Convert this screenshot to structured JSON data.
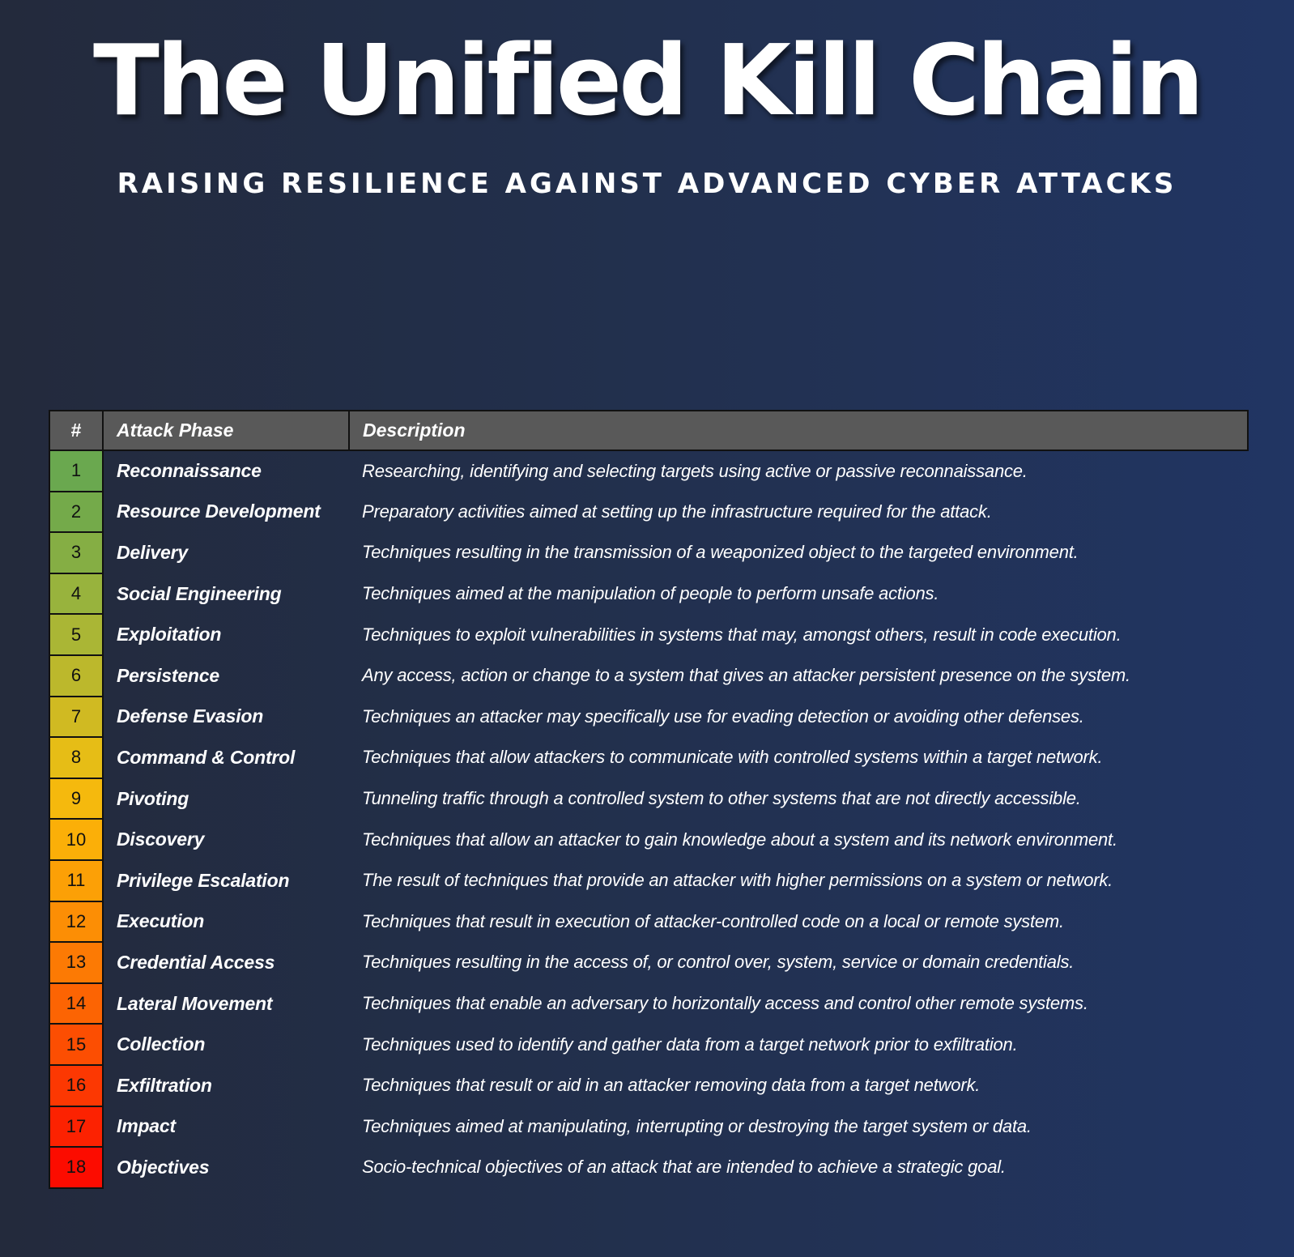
{
  "header": {
    "title": "The Unified Kill Chain",
    "subtitle": "RAISING RESILIENCE AGAINST ADVANCED CYBER ATTACKS"
  },
  "table": {
    "headers": {
      "number": "#",
      "phase": "Attack Phase",
      "description": "Description"
    },
    "rows": [
      {
        "number": "1",
        "phase": "Reconnaissance",
        "description": "Researching, identifying and selecting targets using active or passive reconnaissance.",
        "color": "#6aa84f"
      },
      {
        "number": "2",
        "phase": "Resource Development",
        "description": "Preparatory activities aimed at setting up the infrastructure required for the attack.",
        "color": "#74aa4a"
      },
      {
        "number": "3",
        "phase": "Delivery",
        "description": "Techniques resulting in the transmission of a weaponized object to the targeted environment.",
        "color": "#85ae44"
      },
      {
        "number": "4",
        "phase": "Social Engineering",
        "description": "Techniques aimed at the manipulation of people to perform unsafe actions.",
        "color": "#98b33d"
      },
      {
        "number": "5",
        "phase": "Exploitation",
        "description": "Techniques to exploit vulnerabilities in systems that may, amongst others, result in code execution.",
        "color": "#aab635"
      },
      {
        "number": "6",
        "phase": "Persistence",
        "description": "Any access, action or change to a system that gives an attacker persistent presence on the system.",
        "color": "#bcb82c"
      },
      {
        "number": "7",
        "phase": "Defense Evasion",
        "description": "Techniques an attacker may specifically use for evading detection or avoiding other defenses.",
        "color": "#d0ba22"
      },
      {
        "number": "8",
        "phase": "Command & Control",
        "description": "Techniques that allow attackers to communicate with controlled systems within a target network.",
        "color": "#e6bd16"
      },
      {
        "number": "9",
        "phase": "Pivoting",
        "description": "Tunneling traffic through a controlled system to other systems that are not directly accessible.",
        "color": "#f5b90d"
      },
      {
        "number": "10",
        "phase": "Discovery",
        "description": "Techniques that allow an attacker to gain knowledge about a system and its network environment.",
        "color": "#fbaf08"
      },
      {
        "number": "11",
        "phase": "Privilege Escalation",
        "description": "The result of techniques that provide an attacker with higher permissions on a system or network.",
        "color": "#fca006"
      },
      {
        "number": "12",
        "phase": "Execution",
        "description": "Techniques that result in execution of attacker-controlled code on a local or remote system.",
        "color": "#fc8e05"
      },
      {
        "number": "13",
        "phase": "Credential Access",
        "description": "Techniques resulting in the access of, or control over, system, service or domain credentials.",
        "color": "#fc7a04"
      },
      {
        "number": "14",
        "phase": "Lateral Movement",
        "description": "Techniques that enable an adversary to horizontally access and control other remote systems.",
        "color": "#fc6403"
      },
      {
        "number": "15",
        "phase": "Collection",
        "description": "Techniques used to identify and gather data from a target network prior to exfiltration.",
        "color": "#fc4e02"
      },
      {
        "number": "16",
        "phase": "Exfiltration",
        "description": "Techniques that result or aid in an attacker removing data from a target network.",
        "color": "#fc3802"
      },
      {
        "number": "17",
        "phase": "Impact",
        "description": "Techniques aimed at manipulating, interrupting or destroying the target system or data.",
        "color": "#fc2201"
      },
      {
        "number": "18",
        "phase": "Objectives",
        "description": "Socio-technical objectives of an attack that are intended to achieve a strategic goal.",
        "color": "#fc0c00"
      }
    ]
  }
}
